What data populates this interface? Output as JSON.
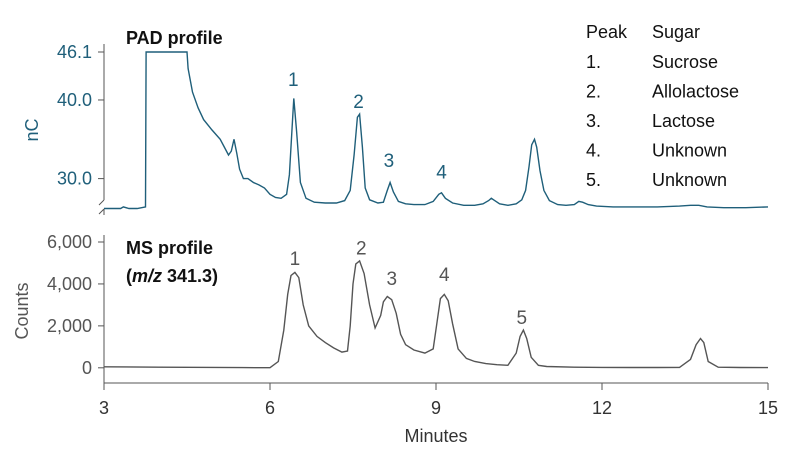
{
  "chart_data": {
    "type": "line",
    "x_axis": {
      "label": "Minutes",
      "range": [
        3,
        15
      ],
      "ticks": [
        "3",
        "6",
        "9",
        "12",
        "15"
      ]
    },
    "legend": {
      "headers": [
        "Peak",
        "Sugar"
      ],
      "rows": [
        {
          "peak": "1.",
          "sugar": "Sucrose"
        },
        {
          "peak": "2.",
          "sugar": "Allolactose"
        },
        {
          "peak": "3.",
          "sugar": "Lactose"
        },
        {
          "peak": "4.",
          "sugar": "Unknown"
        },
        {
          "peak": "5.",
          "sugar": "Unknown"
        }
      ],
      "position": "top-right"
    },
    "panels": [
      {
        "id": "pad",
        "title": "PAD profile",
        "ylabel": "nC",
        "ylim": [
          25.5,
          46.1
        ],
        "axis_break": true,
        "color": "#1f5f7a",
        "y_ticks": [
          {
            "value": 30.0,
            "label": "30.0"
          },
          {
            "value": 40.0,
            "label": "40.0"
          },
          {
            "value": 46.1,
            "label": "46.1"
          }
        ],
        "peak_labels": [
          {
            "label": "1",
            "x": 6.42,
            "y": 41.8
          },
          {
            "label": "2",
            "x": 7.6,
            "y": 39.0
          },
          {
            "label": "3",
            "x": 8.15,
            "y": 31.5
          },
          {
            "label": "4",
            "x": 9.1,
            "y": 30.0
          }
        ],
        "x": [
          3.0,
          3.3,
          3.35,
          3.45,
          3.6,
          3.75,
          3.76,
          4.5,
          4.52,
          4.6,
          4.7,
          4.8,
          4.95,
          5.1,
          5.25,
          5.3,
          5.35,
          5.4,
          5.45,
          5.52,
          5.6,
          5.7,
          5.8,
          5.9,
          6.0,
          6.1,
          6.2,
          6.3,
          6.35,
          6.4,
          6.43,
          6.48,
          6.55,
          6.65,
          6.8,
          7.0,
          7.2,
          7.35,
          7.45,
          7.52,
          7.58,
          7.62,
          7.67,
          7.72,
          7.8,
          7.95,
          8.05,
          8.12,
          8.17,
          8.23,
          8.32,
          8.45,
          8.6,
          8.8,
          8.95,
          9.05,
          9.1,
          9.17,
          9.3,
          9.5,
          9.7,
          9.85,
          9.95,
          10.0,
          10.06,
          10.15,
          10.3,
          10.45,
          10.55,
          10.62,
          10.68,
          10.73,
          10.78,
          10.82,
          10.88,
          10.95,
          11.05,
          11.2,
          11.35,
          11.5,
          11.58,
          11.65,
          11.75,
          11.9,
          12.2,
          12.6,
          13.0,
          13.4,
          13.6,
          13.75,
          13.9,
          14.2,
          14.6,
          15.0
        ],
        "y": [
          26.2,
          26.2,
          26.4,
          26.2,
          26.2,
          26.4,
          46.1,
          46.1,
          44.0,
          41.0,
          39.0,
          37.5,
          36.2,
          35.0,
          33.0,
          33.5,
          35.0,
          33.2,
          31.2,
          30.0,
          30.0,
          29.5,
          29.2,
          28.8,
          28.0,
          27.6,
          27.5,
          28.0,
          30.5,
          36.5,
          40.2,
          36.0,
          29.5,
          27.5,
          27.0,
          26.9,
          26.9,
          27.2,
          28.5,
          33.0,
          37.8,
          38.2,
          34.0,
          28.8,
          27.3,
          26.9,
          27.0,
          28.5,
          29.5,
          28.3,
          27.1,
          26.8,
          26.7,
          26.7,
          27.1,
          28.0,
          28.2,
          27.5,
          26.9,
          26.6,
          26.6,
          26.8,
          27.2,
          27.5,
          27.2,
          26.8,
          26.6,
          26.8,
          27.3,
          28.5,
          31.5,
          34.3,
          35.0,
          34.0,
          31.0,
          28.5,
          27.2,
          26.7,
          26.6,
          26.7,
          27.1,
          27.0,
          26.7,
          26.5,
          26.4,
          26.4,
          26.4,
          26.5,
          26.6,
          26.6,
          26.4,
          26.3,
          26.3,
          26.4
        ]
      },
      {
        "id": "ms",
        "title": "MS profile",
        "subtitle": {
          "prefix": "(",
          "italic": "m/z",
          "suffix": " 341.3)"
        },
        "ylabel": "Counts",
        "ylim": [
          -200,
          6000
        ],
        "color": "#555555",
        "y_ticks": [
          {
            "value": 0,
            "label": "0"
          },
          {
            "value": 2000,
            "label": "2,000"
          },
          {
            "value": 4000,
            "label": "4,000"
          },
          {
            "value": 6000,
            "label": "6,000"
          }
        ],
        "peak_labels": [
          {
            "label": "1",
            "x": 6.45,
            "y": 4900
          },
          {
            "label": "2",
            "x": 7.65,
            "y": 5400
          },
          {
            "label": "3",
            "x": 8.2,
            "y": 3950
          },
          {
            "label": "4",
            "x": 9.15,
            "y": 4150
          },
          {
            "label": "5",
            "x": 10.55,
            "y": 2100
          }
        ],
        "x": [
          3.0,
          4.0,
          5.0,
          5.5,
          6.0,
          6.15,
          6.25,
          6.32,
          6.38,
          6.45,
          6.52,
          6.6,
          6.7,
          6.85,
          7.0,
          7.15,
          7.3,
          7.4,
          7.45,
          7.5,
          7.55,
          7.62,
          7.7,
          7.8,
          7.9,
          8.0,
          8.05,
          8.12,
          8.2,
          8.28,
          8.36,
          8.45,
          8.6,
          8.8,
          8.95,
          9.02,
          9.08,
          9.15,
          9.22,
          9.3,
          9.4,
          9.55,
          9.7,
          9.9,
          10.1,
          10.3,
          10.45,
          10.52,
          10.58,
          10.64,
          10.72,
          10.85,
          11.0,
          11.5,
          12.0,
          12.5,
          13.0,
          13.4,
          13.6,
          13.7,
          13.78,
          13.84,
          13.92,
          14.1,
          14.5,
          15.0
        ],
        "y": [
          50,
          30,
          20,
          10,
          5,
          300,
          1800,
          3500,
          4400,
          4550,
          4300,
          3000,
          2000,
          1500,
          1200,
          950,
          750,
          800,
          2000,
          4000,
          4950,
          5100,
          4500,
          3000,
          1900,
          2500,
          3150,
          3400,
          3250,
          2600,
          1600,
          1100,
          850,
          700,
          900,
          2200,
          3300,
          3500,
          3200,
          2100,
          900,
          450,
          300,
          200,
          150,
          120,
          700,
          1500,
          1800,
          1400,
          500,
          120,
          60,
          30,
          20,
          15,
          15,
          20,
          400,
          1100,
          1400,
          1200,
          300,
          30,
          15,
          10
        ]
      }
    ]
  }
}
